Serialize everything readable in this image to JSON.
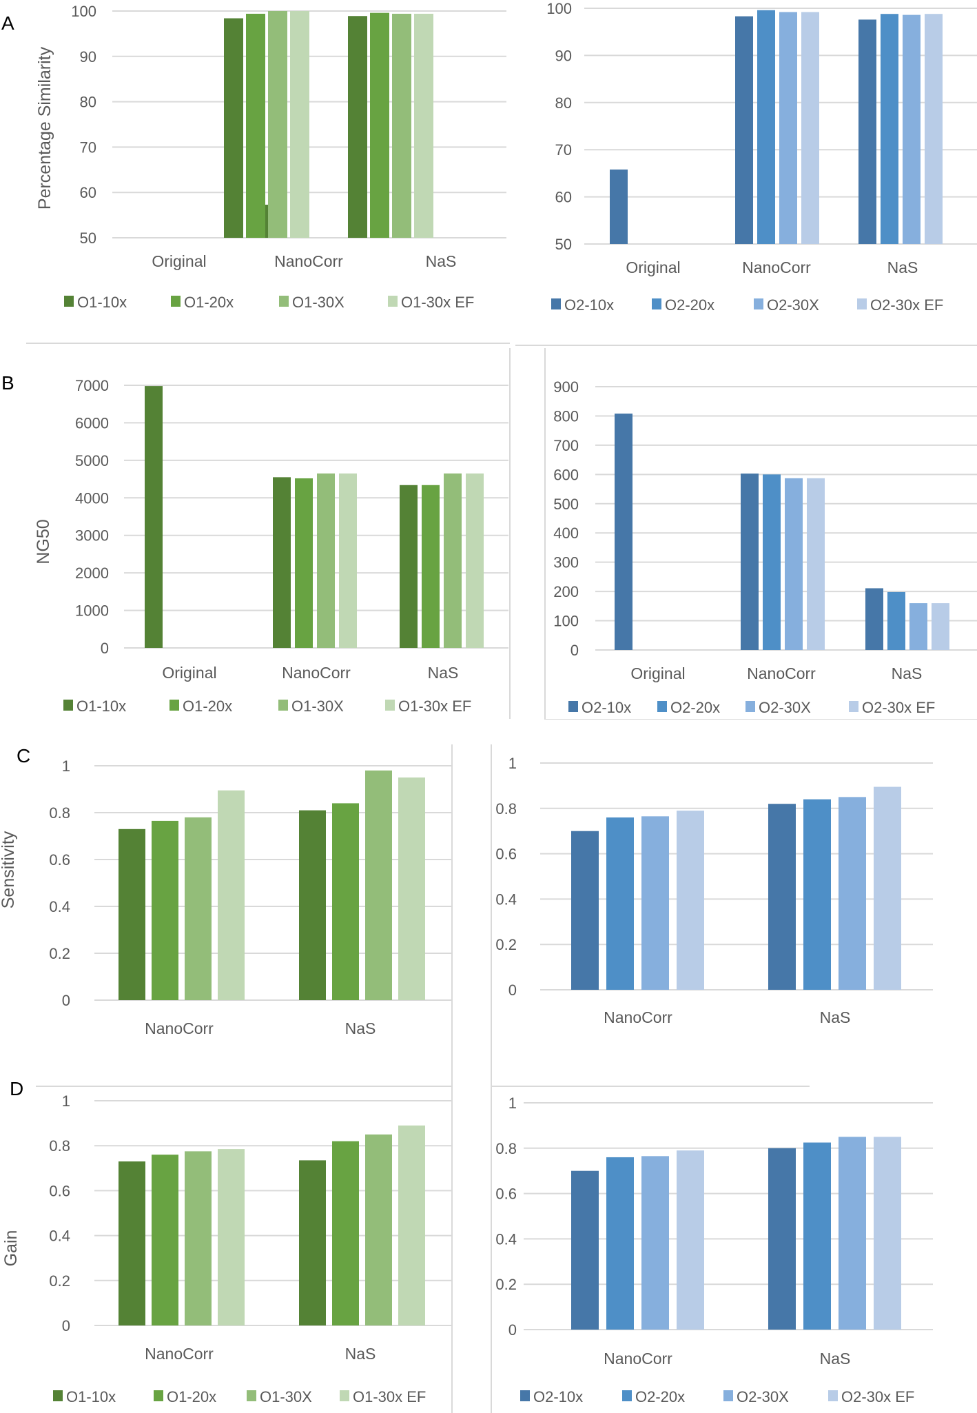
{
  "figure": {
    "panel_letters": [
      "A",
      "B",
      "C",
      "D"
    ]
  },
  "legends": {
    "O1": [
      "O1-10x",
      "O1-20x",
      "O1-30X",
      "O1-30x EF"
    ],
    "O2": [
      "O2-10x",
      "O2-20x",
      "O2-30X",
      "O2-30x EF"
    ]
  },
  "colors": {
    "O1": [
      "#548235",
      "#68a342",
      "#93bd79",
      "#c0d8b4"
    ],
    "O2": [
      "#4677a8",
      "#4e8fc7",
      "#86afdd",
      "#b8cce7"
    ],
    "grid": "#d9d9d9",
    "text": "#595959"
  },
  "chart_data": [
    {
      "id": "A-left",
      "panel": "A",
      "type": "bar",
      "title": "",
      "xlabel": "",
      "ylabel": "Percentage Similarity",
      "ylim": [
        50,
        100
      ],
      "yticks": [
        50,
        60,
        70,
        80,
        90,
        100
      ],
      "categories": [
        "Original",
        "NanoCorr",
        "NaS"
      ],
      "legend_position": "bottom",
      "grid": true,
      "series": [
        {
          "name": "O1-10x",
          "values": [
            57.3,
            98.9,
            98.4
          ]
        },
        {
          "name": "O1-20x",
          "values": [
            null,
            99.6,
            99.4
          ]
        },
        {
          "name": "O1-30X",
          "values": [
            null,
            99.4,
            100
          ]
        },
        {
          "name": "O1-30x EF",
          "values": [
            null,
            99.4,
            100
          ]
        }
      ]
    },
    {
      "id": "A-right",
      "panel": "A",
      "type": "bar",
      "title": "",
      "xlabel": "",
      "ylabel": "",
      "ylim": [
        50,
        100
      ],
      "yticks": [
        50,
        60,
        70,
        80,
        90,
        100
      ],
      "categories": [
        "Original",
        "NanoCorr",
        "NaS"
      ],
      "legend_position": "bottom",
      "grid": true,
      "series": [
        {
          "name": "O2-10x",
          "values": [
            65.8,
            98.3,
            97.6
          ]
        },
        {
          "name": "O2-20x",
          "values": [
            null,
            99.6,
            98.8
          ]
        },
        {
          "name": "O2-30X",
          "values": [
            null,
            99.2,
            98.6
          ]
        },
        {
          "name": "O2-30x EF",
          "values": [
            null,
            99.2,
            98.8
          ]
        }
      ]
    },
    {
      "id": "B-left",
      "panel": "B",
      "type": "bar",
      "title": "",
      "xlabel": "",
      "ylabel": "NG50",
      "ylim": [
        0,
        7000
      ],
      "yticks": [
        0,
        1000,
        2000,
        3000,
        4000,
        5000,
        6000,
        7000
      ],
      "categories": [
        "Original",
        "NanoCorr",
        "NaS"
      ],
      "legend_position": "bottom",
      "grid": true,
      "series": [
        {
          "name": "O1-10x",
          "values": [
            6980,
            4550,
            4340
          ]
        },
        {
          "name": "O1-20x",
          "values": [
            null,
            4520,
            4340
          ]
        },
        {
          "name": "O1-30X",
          "values": [
            null,
            4650,
            4650
          ]
        },
        {
          "name": "O1-30x EF",
          "values": [
            null,
            4650,
            4650
          ]
        }
      ]
    },
    {
      "id": "B-right",
      "panel": "B",
      "type": "bar",
      "title": "",
      "xlabel": "",
      "ylabel": "",
      "ylim": [
        0,
        900
      ],
      "yticks": [
        0,
        100,
        200,
        300,
        400,
        500,
        600,
        700,
        800,
        900
      ],
      "categories": [
        "Original",
        "NanoCorr",
        "NaS"
      ],
      "legend_position": "bottom",
      "grid": true,
      "series": [
        {
          "name": "O2-10x",
          "values": [
            808,
            603,
            211
          ]
        },
        {
          "name": "O2-20x",
          "values": [
            null,
            600,
            198
          ]
        },
        {
          "name": "O2-30X",
          "values": [
            null,
            587,
            160
          ]
        },
        {
          "name": "O2-30x EF",
          "values": [
            null,
            587,
            160
          ]
        }
      ]
    },
    {
      "id": "C-left",
      "panel": "C",
      "type": "bar",
      "title": "",
      "xlabel": "",
      "ylabel": "Sensitivity",
      "ylim": [
        0,
        1
      ],
      "yticks": [
        0,
        0.2,
        0.4,
        0.6,
        0.8,
        1
      ],
      "categories": [
        "NanoCorr",
        "NaS"
      ],
      "legend_position": "none",
      "grid": true,
      "series": [
        {
          "name": "O1-10x",
          "values": [
            0.73,
            0.81
          ]
        },
        {
          "name": "O1-20x",
          "values": [
            0.765,
            0.84
          ]
        },
        {
          "name": "O1-30X",
          "values": [
            0.78,
            0.98
          ]
        },
        {
          "name": "O1-30x EF",
          "values": [
            0.895,
            0.95
          ]
        }
      ]
    },
    {
      "id": "C-right",
      "panel": "C",
      "type": "bar",
      "title": "",
      "xlabel": "",
      "ylabel": "",
      "ylim": [
        0,
        1
      ],
      "yticks": [
        0,
        0.2,
        0.4,
        0.6,
        0.8,
        1
      ],
      "categories": [
        "NanoCorr",
        "NaS"
      ],
      "legend_position": "none",
      "grid": true,
      "series": [
        {
          "name": "O2-10x",
          "values": [
            0.7,
            0.82
          ]
        },
        {
          "name": "O2-20x",
          "values": [
            0.76,
            0.84
          ]
        },
        {
          "name": "O2-30X",
          "values": [
            0.765,
            0.85
          ]
        },
        {
          "name": "O2-30x EF",
          "values": [
            0.79,
            0.895
          ]
        }
      ]
    },
    {
      "id": "D-left",
      "panel": "D",
      "type": "bar",
      "title": "",
      "xlabel": "",
      "ylabel": "Gain",
      "ylim": [
        0,
        1
      ],
      "yticks": [
        0,
        0.2,
        0.4,
        0.6,
        0.8,
        1
      ],
      "categories": [
        "NanoCorr",
        "NaS"
      ],
      "legend_position": "bottom",
      "grid": true,
      "series": [
        {
          "name": "O1-10x",
          "values": [
            0.73,
            0.735
          ]
        },
        {
          "name": "O1-20x",
          "values": [
            0.76,
            0.82
          ]
        },
        {
          "name": "O1-30X",
          "values": [
            0.775,
            0.85
          ]
        },
        {
          "name": "O1-30x EF",
          "values": [
            0.785,
            0.89
          ]
        }
      ]
    },
    {
      "id": "D-right",
      "panel": "D",
      "type": "bar",
      "title": "",
      "xlabel": "",
      "ylabel": "",
      "ylim": [
        0,
        1
      ],
      "yticks": [
        0,
        0.2,
        0.4,
        0.6,
        0.8,
        1
      ],
      "categories": [
        "NanoCorr",
        "NaS"
      ],
      "legend_position": "bottom",
      "grid": true,
      "series": [
        {
          "name": "O2-10x",
          "values": [
            0.7,
            0.8
          ]
        },
        {
          "name": "O2-20x",
          "values": [
            0.76,
            0.825
          ]
        },
        {
          "name": "O2-30X",
          "values": [
            0.765,
            0.85
          ]
        },
        {
          "name": "O2-30x EF",
          "values": [
            0.79,
            0.85
          ]
        }
      ]
    }
  ]
}
